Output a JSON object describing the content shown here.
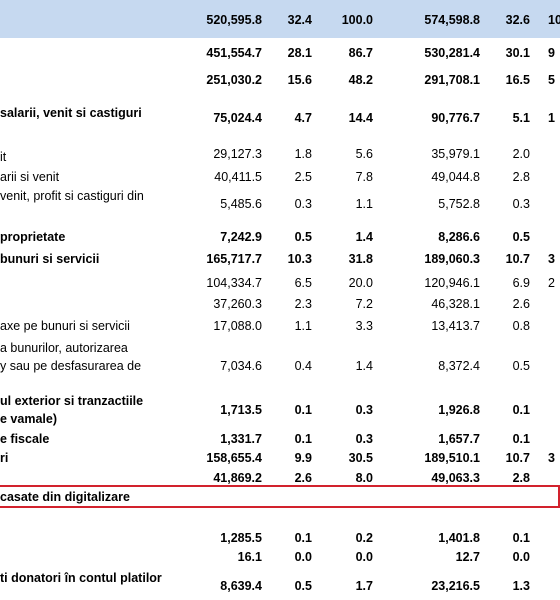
{
  "table": {
    "header": {
      "values": [
        "520,595.8",
        "32.4",
        "100.0",
        "574,598.8",
        "32.6",
        "10"
      ]
    },
    "rows": [
      {
        "label": [],
        "bold": true,
        "values": [
          "451,554.7",
          "28.1",
          "86.7",
          "530,281.4",
          "30.1",
          "9"
        ]
      },
      {
        "label": [],
        "bold": true,
        "values": [
          "251,030.2",
          "15.6",
          "48.2",
          "291,708.1",
          "16.5",
          "5"
        ]
      },
      {
        "label": [
          "salarii, venit si castiguri"
        ],
        "bold": true,
        "values": [
          "75,024.4",
          "4.7",
          "14.4",
          "90,776.7",
          "5.1",
          "1"
        ]
      },
      {
        "label": [
          "it"
        ],
        "bold": false,
        "values": [
          "29,127.3",
          "1.8",
          "5.6",
          "35,979.1",
          "2.0"
        ]
      },
      {
        "label": [
          "arii si venit"
        ],
        "bold": false,
        "values": [
          "40,411.5",
          "2.5",
          "7.8",
          "49,044.8",
          "2.8"
        ]
      },
      {
        "label": [
          "venit, profit si castiguri din"
        ],
        "bold": false,
        "values": [
          "5,485.6",
          "0.3",
          "1.1",
          "5,752.8",
          "0.3"
        ]
      },
      {
        "label": [
          "proprietate"
        ],
        "bold": true,
        "values": [
          "7,242.9",
          "0.5",
          "1.4",
          "8,286.6",
          "0.5"
        ]
      },
      {
        "label": [
          "bunuri si servicii"
        ],
        "bold": true,
        "values": [
          "165,717.7",
          "10.3",
          "31.8",
          "189,060.3",
          "10.7",
          "3"
        ]
      },
      {
        "label": [],
        "bold": false,
        "values": [
          "104,334.7",
          "6.5",
          "20.0",
          "120,946.1",
          "6.9",
          "2"
        ]
      },
      {
        "label": [],
        "bold": false,
        "values": [
          "37,260.3",
          "2.3",
          "7.2",
          "46,328.1",
          "2.6"
        ]
      },
      {
        "label": [
          "axe pe bunuri si servicii"
        ],
        "bold": false,
        "values": [
          "17,088.0",
          "1.1",
          "3.3",
          "13,413.7",
          "0.8"
        ]
      },
      {
        "label": [
          "a bunurilor, autorizarea",
          "y sau pe  desfasurarea de"
        ],
        "bold": false,
        "values": [
          "7,034.6",
          "0.4",
          "1.4",
          "8,372.4",
          "0.5"
        ]
      },
      {
        "label": [
          "ul exterior si tranzactiile",
          "e vamale)"
        ],
        "bold": true,
        "values": [
          "1,713.5",
          "0.1",
          "0.3",
          "1,926.8",
          "0.1"
        ]
      },
      {
        "label": [
          "e fiscale"
        ],
        "bold": true,
        "values": [
          "1,331.7",
          "0.1",
          "0.3",
          "1,657.7",
          "0.1"
        ]
      },
      {
        "label": [
          "ri"
        ],
        "bold": true,
        "values": [
          "158,655.4",
          "9.9",
          "30.5",
          "189,510.1",
          "10.7",
          "3"
        ]
      },
      {
        "label": [],
        "bold": true,
        "values": [
          "41,869.2",
          "2.6",
          "8.0",
          "49,063.3",
          "2.8"
        ]
      },
      {
        "label": [
          "casate din digitalizare"
        ],
        "bold": true,
        "values": []
      },
      {
        "label": [],
        "bold": true,
        "values": [
          "1,285.5",
          "0.1",
          "0.2",
          "1,401.8",
          "0.1"
        ]
      },
      {
        "label": [],
        "bold": true,
        "values": [
          "16.1",
          "0.0",
          "0.0",
          "12.7",
          "0.0"
        ]
      },
      {
        "label": [
          "ti donatori în contul platilor"
        ],
        "bold": true,
        "values": [
          "8,639.4",
          "0.5",
          "1.7",
          "23,216.5",
          "1.3"
        ]
      }
    ]
  }
}
